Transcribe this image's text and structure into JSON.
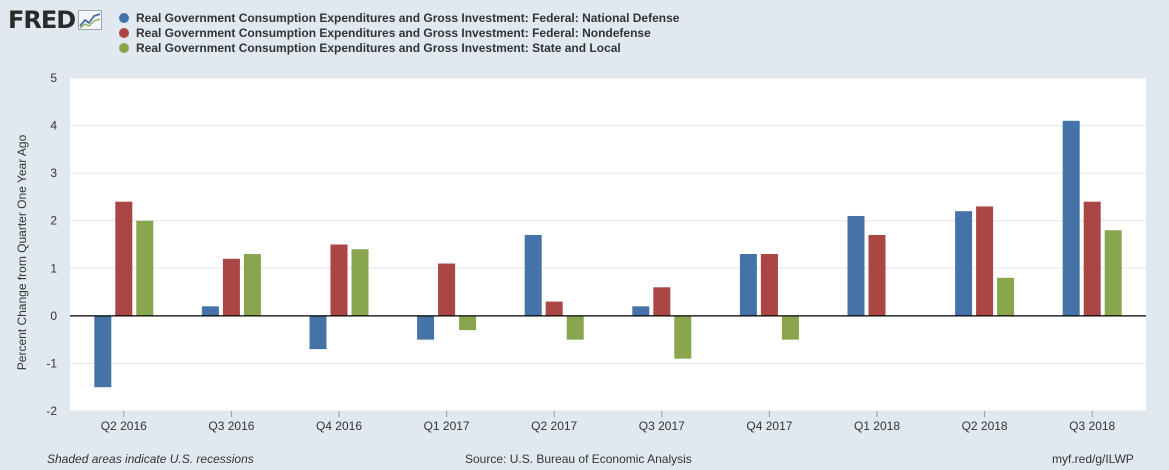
{
  "brand": {
    "name": "FRED"
  },
  "chart_data": {
    "type": "bar",
    "categories": [
      "Q2 2016",
      "Q3 2016",
      "Q4 2016",
      "Q1 2017",
      "Q2 2017",
      "Q3 2017",
      "Q4 2017",
      "Q1 2018",
      "Q2 2018",
      "Q3 2018"
    ],
    "series": [
      {
        "name": "Real Government Consumption Expenditures and Gross Investment: Federal: National Defense",
        "color": "#4572a7",
        "values": [
          -1.5,
          0.2,
          -0.7,
          -0.5,
          1.7,
          0.2,
          1.3,
          2.1,
          2.2,
          4.1
        ]
      },
      {
        "name": "Real Government Consumption Expenditures and Gross Investment: Federal: Nondefense",
        "color": "#aa4643",
        "values": [
          2.4,
          1.2,
          1.5,
          1.1,
          0.3,
          0.6,
          1.3,
          1.7,
          2.3,
          2.4
        ]
      },
      {
        "name": "Real Government Consumption Expenditures and Gross Investment: State and Local",
        "color": "#89a54e",
        "values": [
          2.0,
          1.3,
          1.4,
          -0.3,
          -0.5,
          -0.9,
          -0.5,
          0.0,
          0.8,
          1.8
        ]
      }
    ],
    "ylabel": "Percent Change from Quarter One Year Ago",
    "ylim": [
      -2,
      5
    ],
    "yticks": [
      -2,
      -1,
      0,
      1,
      2,
      3,
      4,
      5
    ],
    "grid": true,
    "legend_position": "top-left"
  },
  "footer": {
    "recession_note": "Shaded areas indicate U.S. recessions",
    "source": "Source: U.S. Bureau of Economic Analysis",
    "url": "myf.red/g/ILWP"
  }
}
